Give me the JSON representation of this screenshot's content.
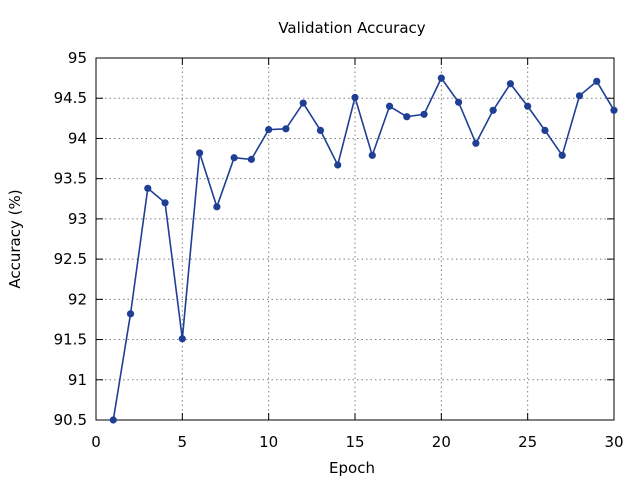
{
  "chart_data": {
    "type": "line",
    "title": "Validation Accuracy",
    "xlabel": "Epoch",
    "ylabel": "Accuracy (%)",
    "xlim": [
      0,
      30
    ],
    "ylim": [
      90.5,
      95
    ],
    "xticks": [
      0,
      5,
      10,
      15,
      20,
      25,
      30
    ],
    "yticks": [
      90.5,
      91,
      91.5,
      92,
      92.5,
      93,
      93.5,
      94,
      94.5,
      95
    ],
    "xtick_labels": [
      "0",
      "5",
      "10",
      "15",
      "20",
      "25",
      "30"
    ],
    "ytick_labels": [
      "90.5",
      "91",
      "91.5",
      "92",
      "92.5",
      "93",
      "93.5",
      "94",
      "94.5",
      "95"
    ],
    "grid": true,
    "series": [
      {
        "color": "#1f3f95",
        "x": [
          1,
          2,
          3,
          4,
          5,
          6,
          7,
          8,
          9,
          10,
          11,
          12,
          13,
          14,
          15,
          16,
          17,
          18,
          19,
          20,
          21,
          22,
          23,
          24,
          25,
          26,
          27,
          28,
          29,
          30
        ],
        "y": [
          90.5,
          91.82,
          93.38,
          93.2,
          91.51,
          93.82,
          93.15,
          93.76,
          93.74,
          94.11,
          94.12,
          94.44,
          94.1,
          93.67,
          94.51,
          93.79,
          94.4,
          94.27,
          94.3,
          94.75,
          94.45,
          93.94,
          94.35,
          94.68,
          94.4,
          94.1,
          93.79,
          94.53,
          94.71,
          94.35
        ]
      }
    ]
  }
}
